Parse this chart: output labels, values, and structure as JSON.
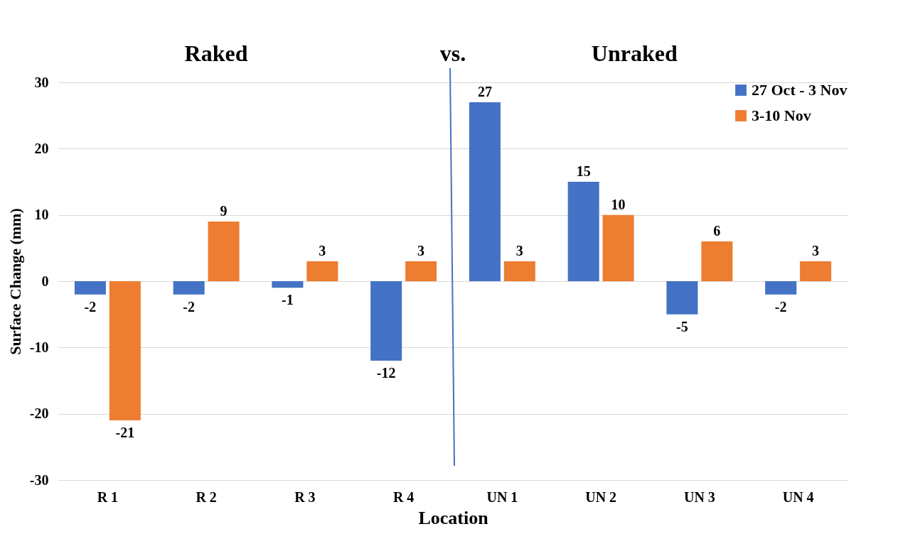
{
  "chart_data": {
    "type": "bar",
    "xlabel": "Location",
    "ylabel": "Surface Change (mm)",
    "categories": [
      "R 1",
      "R 2",
      "R 3",
      "R 4",
      "UN 1",
      "UN 2",
      "UN 3",
      "UN 4"
    ],
    "series": [
      {
        "name": "27 Oct - 3 Nov",
        "color": "#4472c4",
        "values": [
          -2,
          -2,
          -1,
          -12,
          27,
          15,
          -5,
          -2
        ]
      },
      {
        "name": "3-10 Nov",
        "color": "#ed7d31",
        "values": [
          -21,
          9,
          3,
          3,
          3,
          10,
          6,
          3
        ]
      }
    ],
    "ylim": [
      -30,
      30
    ],
    "yticks": [
      -30,
      -20,
      -10,
      0,
      10,
      20,
      30
    ],
    "grid": "y",
    "legend": "top right",
    "data_labels": true,
    "annotations": [
      "Raked",
      "vs.",
      "Unraked"
    ]
  }
}
